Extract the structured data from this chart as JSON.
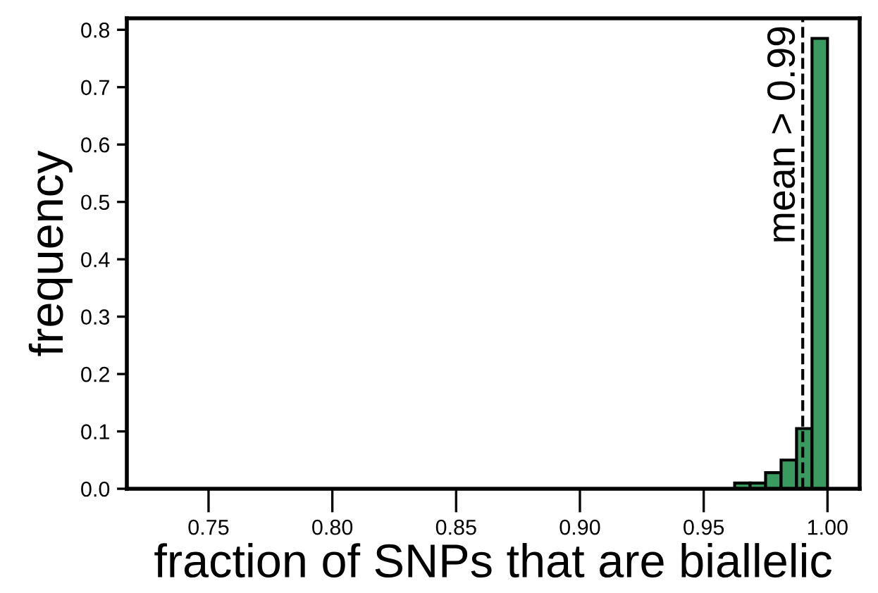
{
  "chart_data": {
    "type": "histogram",
    "xlabel": "fraction of SNPs that are biallelic",
    "ylabel": "frequency",
    "bins": [
      0.95,
      0.95625,
      0.9625,
      0.96875,
      0.975,
      0.98125,
      0.9875,
      0.99375,
      1.0
    ],
    "values": [
      null,
      null,
      0.01,
      0.01,
      0.028,
      0.05,
      0.105,
      0.785
    ],
    "color": "#3a9a5f",
    "xlim": [
      0.717,
      1.013
    ],
    "ylim": [
      0,
      0.82
    ],
    "xticks": [
      0.75,
      {
        "value": 0.8,
        "label": "0.80"
      },
      0.85,
      {
        "value": 0.9,
        "label": "0.90"
      },
      0.95,
      {
        "value": 1.0,
        "label": "1.00"
      }
    ],
    "yticks": [
      {
        "value": 0,
        "label": "0.0"
      },
      0.1,
      0.2,
      0.3,
      0.4,
      0.5,
      0.6,
      0.7,
      0.8
    ],
    "ref_lines": [
      {
        "axis": "x",
        "value": 0.99,
        "label": "mean > 0.99",
        "line_style": "dashed",
        "color": "#000000"
      }
    ],
    "grid": false,
    "legend": false
  }
}
